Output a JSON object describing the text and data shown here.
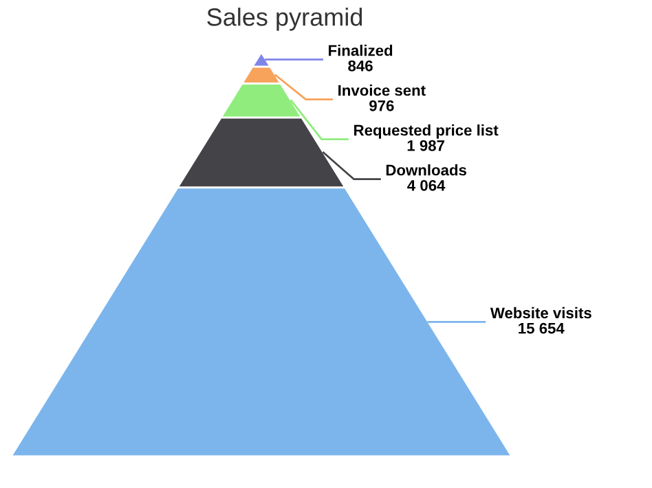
{
  "chart_data": {
    "type": "other",
    "title": "Sales pyramid",
    "categories": [
      "Finalized",
      "Invoice sent",
      "Requested price list",
      "Downloads",
      "Website visits"
    ],
    "values": [
      846,
      976,
      1987,
      4064,
      15654
    ],
    "value_labels": [
      "846",
      "976",
      "1 987",
      "4 064",
      "15 654"
    ],
    "colors": [
      "#8085e9",
      "#f7a35c",
      "#90ed7d",
      "#434348",
      "#7cb5ec"
    ]
  }
}
